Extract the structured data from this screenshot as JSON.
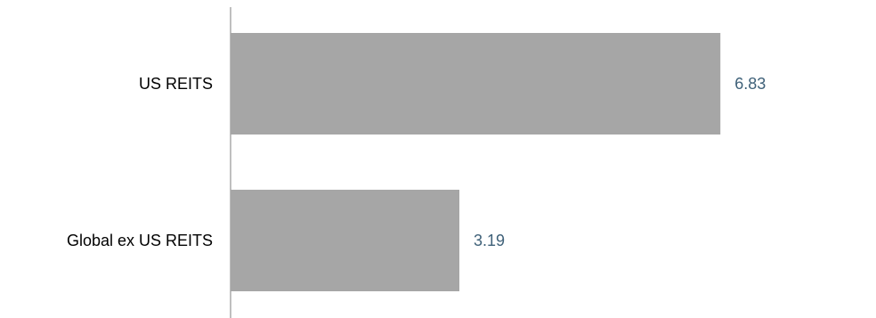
{
  "chart_data": {
    "type": "bar",
    "orientation": "horizontal",
    "categories": [
      "US REITS",
      "Global ex US REITS"
    ],
    "values": [
      6.83,
      3.19
    ],
    "value_labels": [
      "6.83",
      "3.19"
    ],
    "xlim": [
      0,
      9
    ],
    "grid": false,
    "legend": "none",
    "colors": {
      "bar": "#a6a6a6",
      "axis": "#7f7f7f",
      "category_label": "#000000",
      "value_label": "#3e6078"
    }
  }
}
